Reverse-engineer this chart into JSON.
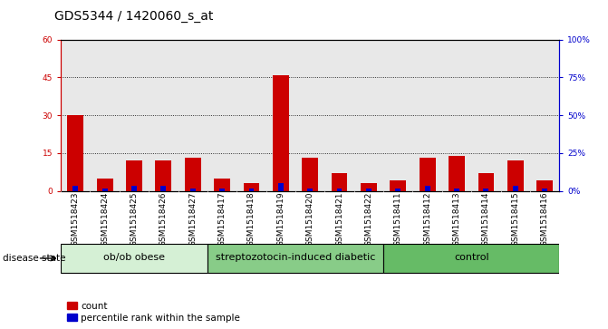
{
  "title": "GDS5344 / 1420060_s_at",
  "samples": [
    "GSM1518423",
    "GSM1518424",
    "GSM1518425",
    "GSM1518426",
    "GSM1518427",
    "GSM1518417",
    "GSM1518418",
    "GSM1518419",
    "GSM1518420",
    "GSM1518421",
    "GSM1518422",
    "GSM1518411",
    "GSM1518412",
    "GSM1518413",
    "GSM1518414",
    "GSM1518415",
    "GSM1518416"
  ],
  "count_values": [
    30,
    5,
    12,
    12,
    13,
    5,
    3,
    46,
    13,
    7,
    3,
    4,
    13,
    14,
    7,
    12,
    4
  ],
  "percentile_values": [
    2,
    1,
    2,
    2,
    1,
    1,
    1,
    3,
    1,
    1,
    1,
    1,
    2,
    1,
    1,
    2,
    1
  ],
  "groups": [
    {
      "label": "ob/ob obese",
      "start": 0,
      "end": 4,
      "color": "#d5f0d5"
    },
    {
      "label": "streptozotocin-induced diabetic",
      "start": 5,
      "end": 10,
      "color": "#88cc88"
    },
    {
      "label": "control",
      "start": 11,
      "end": 16,
      "color": "#66bb66"
    }
  ],
  "ylim_left": [
    0,
    60
  ],
  "ylim_right": [
    0,
    100
  ],
  "yticks_left": [
    0,
    15,
    30,
    45,
    60
  ],
  "yticks_right": [
    0,
    25,
    50,
    75,
    100
  ],
  "ytick_labels_left": [
    "0",
    "15",
    "30",
    "45",
    "60"
  ],
  "ytick_labels_right": [
    "0%",
    "25%",
    "50%",
    "75%",
    "100%"
  ],
  "bar_color_red": "#cc0000",
  "bar_color_blue": "#0000cc",
  "bg_color": "#e8e8e8",
  "disease_state_label": "disease state",
  "legend_count": "count",
  "legend_percentile": "percentile rank within the sample",
  "title_fontsize": 10,
  "tick_fontsize": 6.5,
  "group_fontsize": 8,
  "legend_fontsize": 7.5
}
